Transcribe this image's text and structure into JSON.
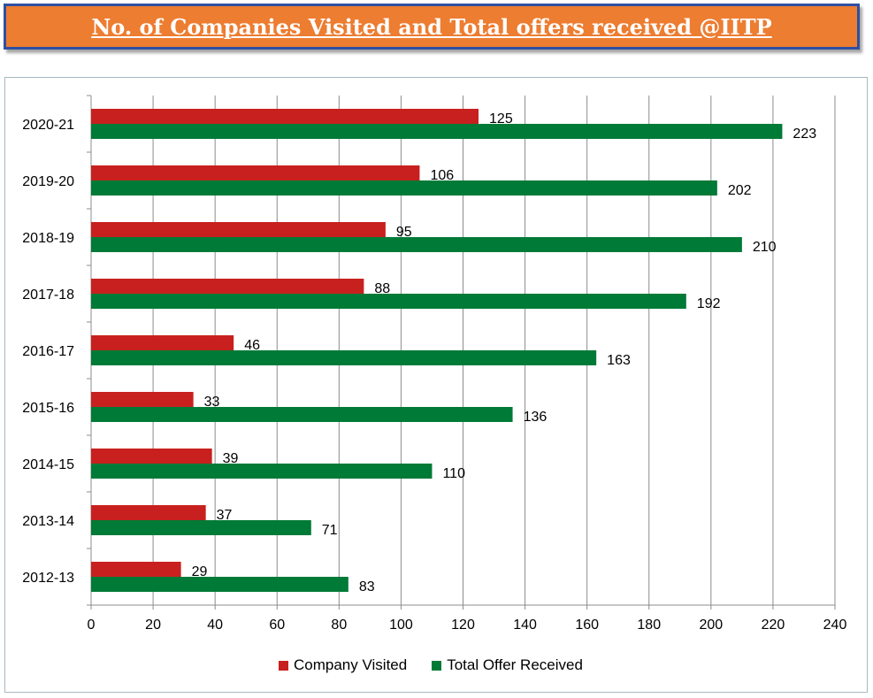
{
  "title": "No. of Companies Visited and Total offers received @IITP",
  "chart_data": {
    "type": "bar",
    "orientation": "horizontal",
    "categories": [
      "2020-21",
      "2019-20",
      "2018-19",
      "2017-18",
      "2016-17",
      "2015-16",
      "2014-15",
      "2013-14",
      "2012-13"
    ],
    "series": [
      {
        "name": "Company Visited",
        "color": "#c8201e",
        "values": [
          125,
          106,
          95,
          88,
          46,
          33,
          39,
          37,
          29
        ]
      },
      {
        "name": "Total Offer Received",
        "color": "#007a37",
        "values": [
          223,
          202,
          210,
          192,
          163,
          136,
          110,
          71,
          83
        ]
      }
    ],
    "xlim": [
      0,
      240
    ],
    "xticks": [
      0,
      20,
      40,
      60,
      80,
      100,
      120,
      140,
      160,
      180,
      200,
      220,
      240
    ],
    "grid": "vertical",
    "legend_position": "bottom"
  }
}
